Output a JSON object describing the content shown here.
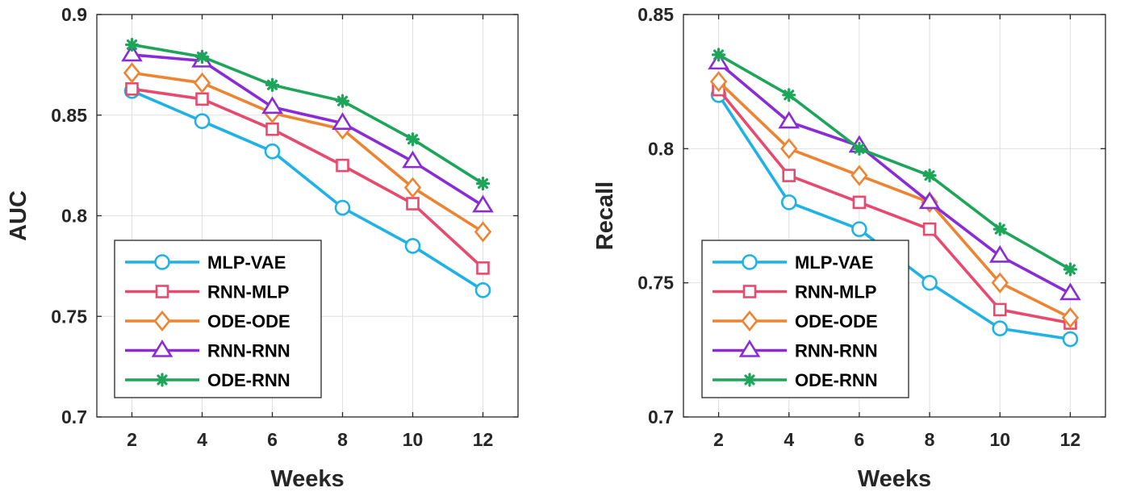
{
  "chart_data": [
    {
      "type": "line",
      "title": "",
      "xlabel": "Weeks",
      "ylabel": "AUC",
      "x": [
        2,
        4,
        6,
        8,
        10,
        12
      ],
      "xticks": [
        "2",
        "4",
        "6",
        "8",
        "10",
        "12"
      ],
      "xlim": [
        1,
        13
      ],
      "ylim": [
        0.7,
        0.9
      ],
      "yticks": [
        "0.7",
        "0.75",
        "0.8",
        "0.85",
        "0.9"
      ],
      "grid": true,
      "legend_position": "bottom-left",
      "series": [
        {
          "name": "MLP-VAE",
          "values": [
            0.862,
            0.847,
            0.832,
            0.804,
            0.785,
            0.763
          ]
        },
        {
          "name": "RNN-MLP",
          "values": [
            0.863,
            0.858,
            0.843,
            0.825,
            0.806,
            0.774
          ]
        },
        {
          "name": "ODE-ODE",
          "values": [
            0.871,
            0.866,
            0.851,
            0.843,
            0.814,
            0.792
          ]
        },
        {
          "name": "RNN-RNN",
          "values": [
            0.88,
            0.877,
            0.854,
            0.846,
            0.827,
            0.805
          ]
        },
        {
          "name": "ODE-RNN",
          "values": [
            0.885,
            0.879,
            0.865,
            0.857,
            0.838,
            0.816
          ]
        }
      ]
    },
    {
      "type": "line",
      "title": "",
      "xlabel": "Weeks",
      "ylabel": "Recall",
      "x": [
        2,
        4,
        6,
        8,
        10,
        12
      ],
      "xticks": [
        "2",
        "4",
        "6",
        "8",
        "10",
        "12"
      ],
      "xlim": [
        1,
        13
      ],
      "ylim": [
        0.7,
        0.85
      ],
      "yticks": [
        "0.7",
        "0.75",
        "0.8",
        "0.85"
      ],
      "grid": true,
      "legend_position": "bottom-left",
      "series": [
        {
          "name": "MLP-VAE",
          "values": [
            0.82,
            0.78,
            0.77,
            0.75,
            0.733,
            0.729
          ]
        },
        {
          "name": "RNN-MLP",
          "values": [
            0.822,
            0.79,
            0.78,
            0.77,
            0.74,
            0.735
          ]
        },
        {
          "name": "ODE-ODE",
          "values": [
            0.825,
            0.8,
            0.79,
            0.78,
            0.75,
            0.737
          ]
        },
        {
          "name": "RNN-RNN",
          "values": [
            0.832,
            0.81,
            0.801,
            0.78,
            0.76,
            0.746
          ]
        },
        {
          "name": "ODE-RNN",
          "values": [
            0.835,
            0.82,
            0.8,
            0.79,
            0.77,
            0.755
          ]
        }
      ]
    }
  ],
  "series_styles": [
    {
      "name": "MLP-VAE",
      "color": "#1FB2E6",
      "marker": "circle"
    },
    {
      "name": "RNN-MLP",
      "color": "#E84A6E",
      "marker": "square"
    },
    {
      "name": "ODE-ODE",
      "color": "#EE8431",
      "marker": "diamond"
    },
    {
      "name": "RNN-RNN",
      "color": "#8A2BD8",
      "marker": "triangle"
    },
    {
      "name": "ODE-RNN",
      "color": "#1DA55A",
      "marker": "asterisk"
    }
  ]
}
